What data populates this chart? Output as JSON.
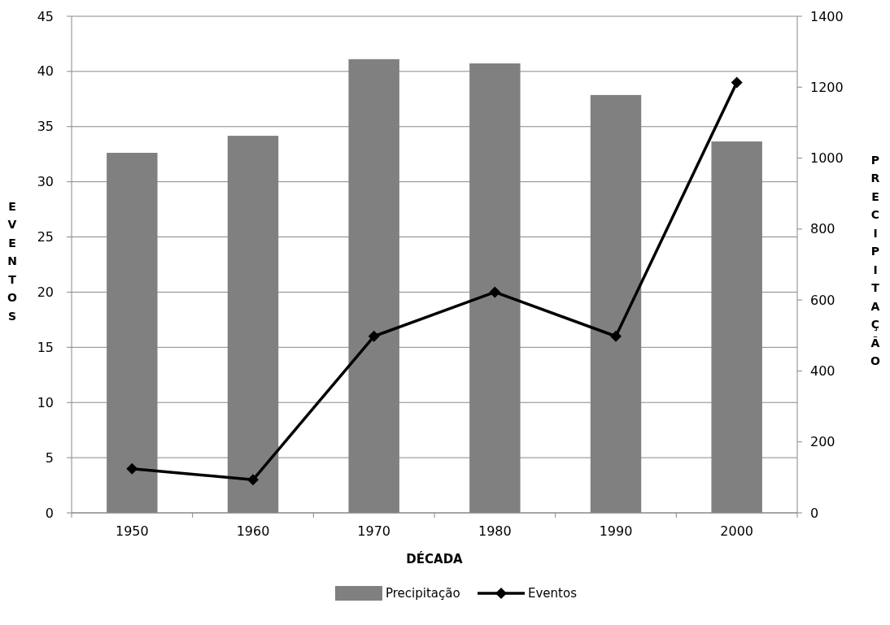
{
  "chart_data": {
    "type": "bar",
    "xlabel": "DÉCADA",
    "ylabel": "EVENTOS",
    "y2label": "PRECIPITAÇÃO",
    "categories": [
      "1950",
      "1960",
      "1970",
      "1980",
      "1990",
      "2000"
    ],
    "series": [
      {
        "name": "Precipitação",
        "axis": "y2",
        "color": "#808080",
        "values": [
          1015,
          1063,
          1279,
          1267,
          1178,
          1047
        ]
      },
      {
        "name": "Eventos",
        "type": "line",
        "axis": "y",
        "color": "#000000",
        "marker": "diamond",
        "line_style": "solid",
        "values": [
          4,
          3,
          16,
          20,
          16,
          39
        ]
      }
    ],
    "ylim": [
      0,
      45
    ],
    "yticks": [
      0,
      5,
      10,
      15,
      20,
      25,
      30,
      35,
      40,
      45
    ],
    "y2lim": [
      0,
      1400
    ],
    "y2ticks": [
      0,
      200,
      400,
      600,
      800,
      1000,
      1200,
      1400
    ],
    "grid": "y",
    "legend": "bottom"
  }
}
